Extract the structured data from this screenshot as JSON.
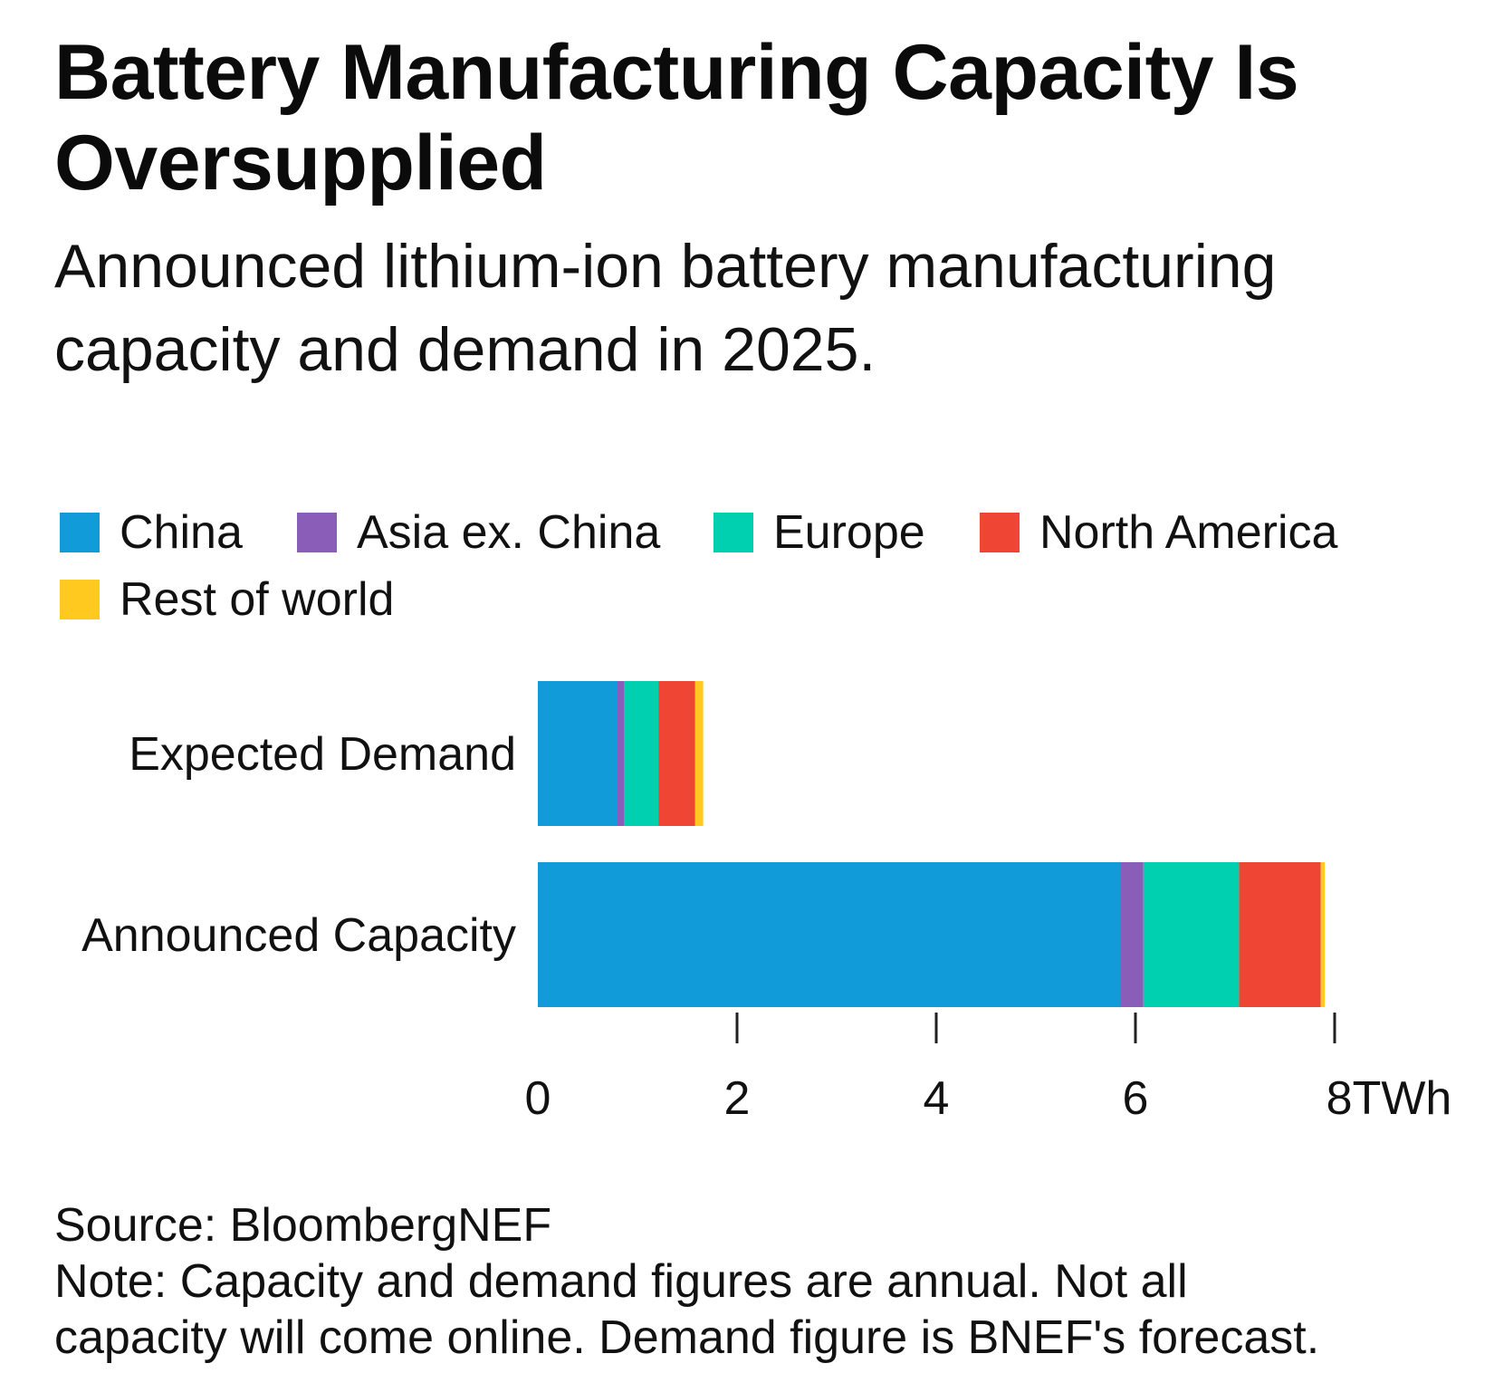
{
  "chart_data": {
    "type": "bar",
    "orientation": "horizontal",
    "stacked": true,
    "title": "Battery Manufacturing Capacity Is Oversupplied",
    "subtitle": "Announced lithium-ion battery manufacturing capacity and demand in 2025.",
    "categories": [
      "Expected Demand",
      "Announced Capacity"
    ],
    "series": [
      {
        "name": "China",
        "color": "#119bd8",
        "values": [
          0.8,
          5.85
        ]
      },
      {
        "name": "Asia ex. China",
        "color": "#8a5db8",
        "values": [
          0.07,
          0.23
        ]
      },
      {
        "name": "Europe",
        "color": "#00cfb0",
        "values": [
          0.34,
          0.96
        ]
      },
      {
        "name": "North America",
        "color": "#ee4535",
        "values": [
          0.37,
          0.82
        ]
      },
      {
        "name": "Rest of world",
        "color": "#ffc91f",
        "values": [
          0.08,
          0.04
        ]
      }
    ],
    "xlim": [
      0,
      8
    ],
    "xticks": [
      {
        "value": 0,
        "label": "0"
      },
      {
        "value": 2,
        "label": "2"
      },
      {
        "value": 4,
        "label": "4"
      },
      {
        "value": 6,
        "label": "6"
      },
      {
        "value": 8,
        "label": "8TWh"
      }
    ],
    "grid": false,
    "legend_position": "top-left"
  },
  "footer": {
    "source": "Source: BloombergNEF",
    "note_line1": "Note: Capacity and demand figures are annual. Not all",
    "note_line2": "capacity will come online. Demand figure is BNEF's forecast."
  }
}
